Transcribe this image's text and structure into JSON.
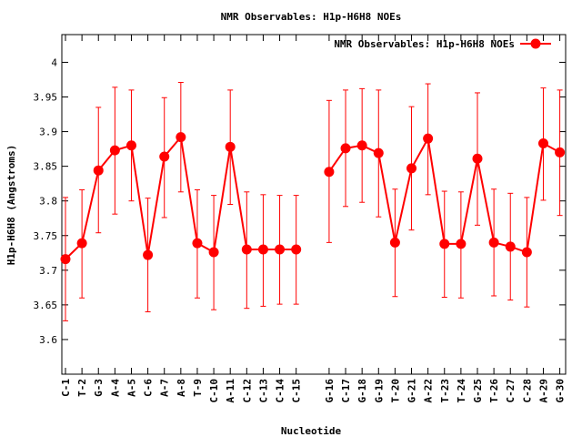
{
  "chart_data": {
    "type": "line",
    "title": "NMR Observables: H1p-H6H8 NOEs",
    "xlabel": "Nucleotide",
    "ylabel": "H1p-H6H8 (Angstroms)",
    "ylim": [
      3.55,
      4.04
    ],
    "yticks": [
      "3.6",
      "3.65",
      "3.7",
      "3.75",
      "3.8",
      "3.85",
      "3.9",
      "3.95",
      "4"
    ],
    "legend_position": "top-right",
    "grid": false,
    "color": "#ff0000",
    "categories": [
      "C-1",
      "T-2",
      "G-3",
      "A-4",
      "A-5",
      "C-6",
      "A-7",
      "A-8",
      "T-9",
      "C-10",
      "A-11",
      "C-12",
      "C-13",
      "C-14",
      "C-15",
      "",
      "G-16",
      "C-17",
      "G-18",
      "G-19",
      "T-20",
      "G-21",
      "A-22",
      "T-23",
      "T-24",
      "G-25",
      "T-26",
      "C-27",
      "C-28",
      "A-29",
      "G-30"
    ],
    "series": [
      {
        "name": "NMR Observables: H1p-H6H8 NOEs",
        "values": [
          3.716,
          3.739,
          3.844,
          3.873,
          3.88,
          3.722,
          3.864,
          3.892,
          3.739,
          3.726,
          3.878,
          3.73,
          3.73,
          3.73,
          3.73,
          null,
          3.842,
          3.876,
          3.88,
          3.869,
          3.74,
          3.847,
          3.89,
          3.738,
          3.738,
          3.861,
          3.74,
          3.734,
          3.726,
          3.883,
          3.87
        ],
        "err_low": [
          3.627,
          3.66,
          3.754,
          3.781,
          3.8,
          3.64,
          3.776,
          3.813,
          3.66,
          3.643,
          3.795,
          3.645,
          3.648,
          3.651,
          3.651,
          null,
          3.74,
          3.792,
          3.798,
          3.777,
          3.662,
          3.758,
          3.809,
          3.661,
          3.66,
          3.765,
          3.663,
          3.657,
          3.647,
          3.801,
          3.779
        ],
        "err_high": [
          3.805,
          3.816,
          3.935,
          3.964,
          3.96,
          3.804,
          3.949,
          3.971,
          3.816,
          3.808,
          3.96,
          3.813,
          3.809,
          3.808,
          3.808,
          null,
          3.945,
          3.96,
          3.962,
          3.96,
          3.817,
          3.936,
          3.969,
          3.814,
          3.813,
          3.956,
          3.817,
          3.811,
          3.805,
          3.963,
          3.96
        ]
      }
    ]
  }
}
